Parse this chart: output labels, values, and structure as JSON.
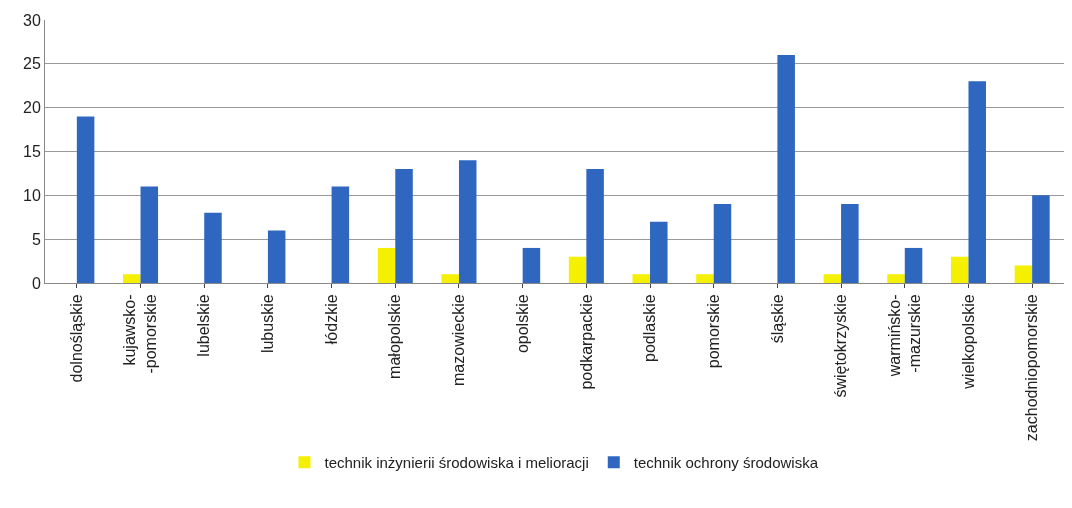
{
  "chart_data": {
    "type": "bar",
    "categories": [
      "dolnośląskie",
      "kujawsko-\n-pomorskie",
      "lubelskie",
      "lubuskie",
      "łódzkie",
      "małopolskie",
      "mazowieckie",
      "opolskie",
      "podkarpackie",
      "podlaskie",
      "pomorskie",
      "śląskie",
      "świętokrzyskie",
      "warmińsko-\n-mazurskie",
      "wielkopolskie",
      "zachodniopomorskie"
    ],
    "series": [
      {
        "name": "technik inżynierii środowiska i melioracji",
        "color": "#f5f000",
        "values": [
          0,
          1,
          0,
          0,
          0,
          4,
          1,
          0,
          3,
          1,
          1,
          0,
          1,
          1,
          3,
          2
        ]
      },
      {
        "name": "technik ochrony środowiska",
        "color": "#2e66c0",
        "values": [
          19,
          11,
          8,
          6,
          11,
          13,
          14,
          4,
          13,
          7,
          9,
          26,
          9,
          4,
          23,
          10
        ]
      }
    ],
    "ylim": [
      0,
      30
    ],
    "yticks": [
      0,
      5,
      10,
      15,
      20,
      25,
      30
    ],
    "grid": "y",
    "legend": "bottom"
  }
}
